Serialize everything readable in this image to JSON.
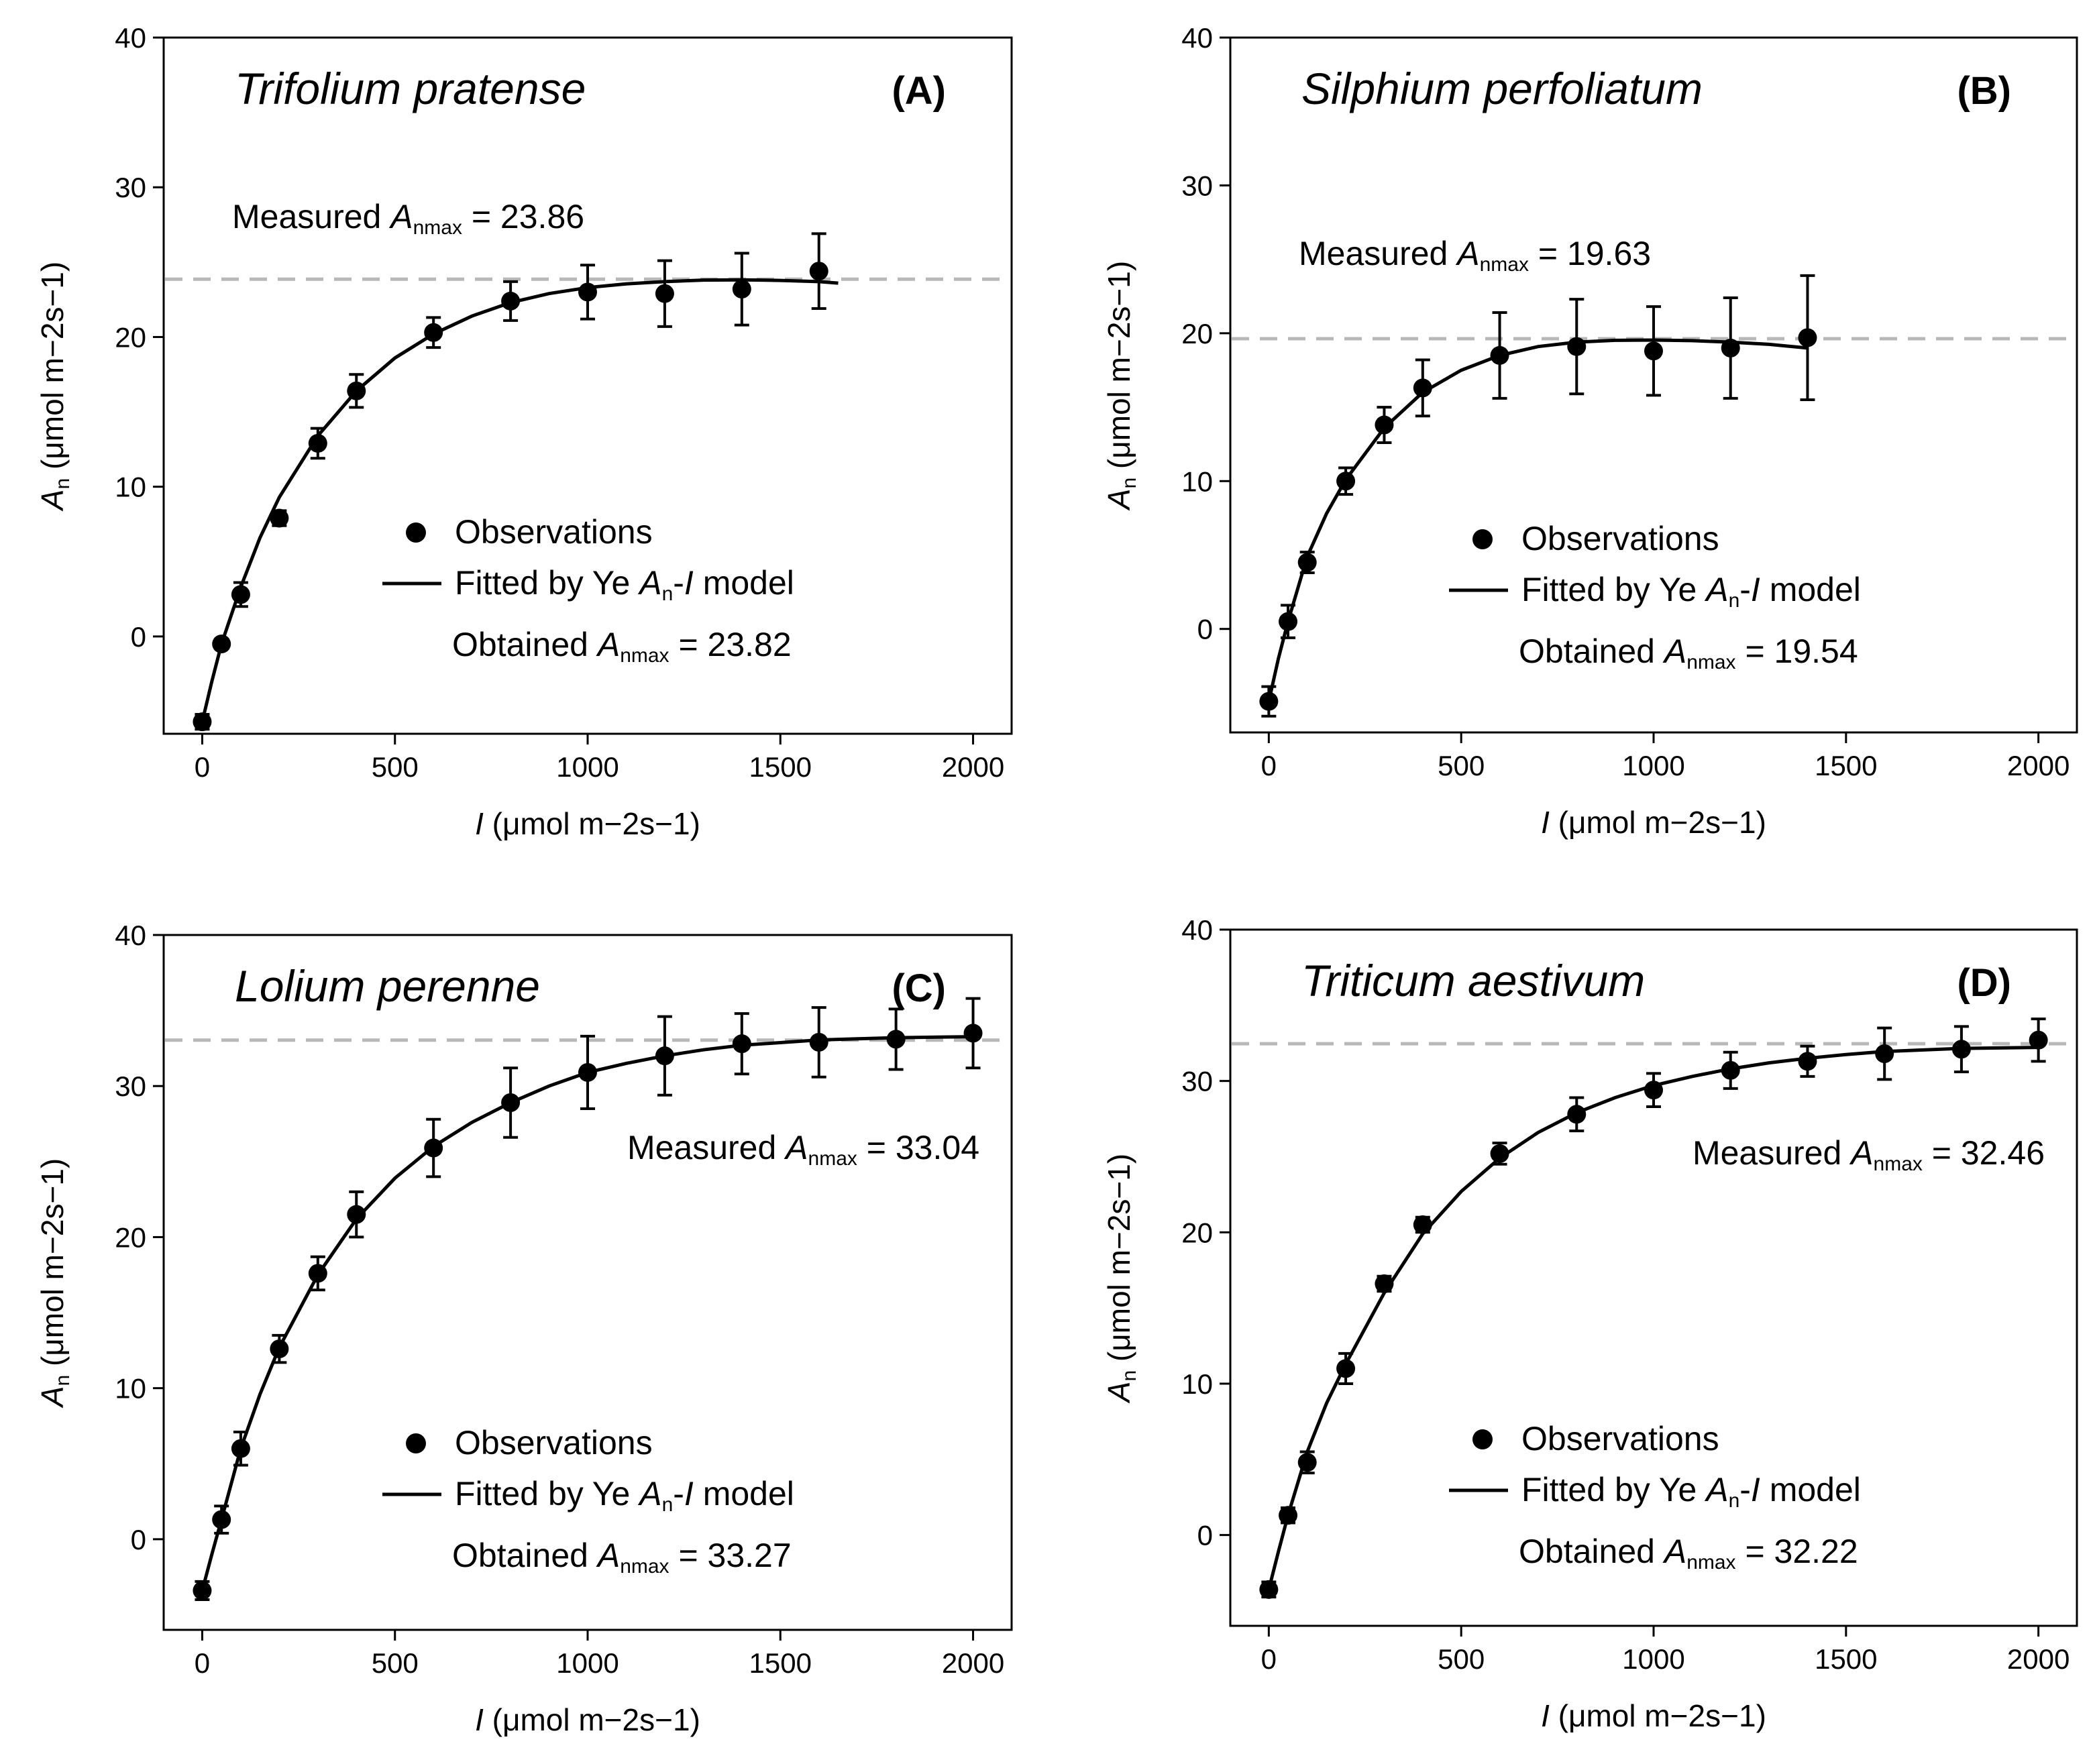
{
  "chart_data": [
    {
      "type": "scatter",
      "panel_label": "(A)",
      "species": "Trifolium pratense",
      "xlabel_var": "I",
      "xlabel_unit": "(μmol m−2s−1)",
      "ylabel_var": "A",
      "ylabel_sub": "n",
      "ylabel_unit": "(μmol m−2s−1)",
      "xlim": [
        -100,
        2100
      ],
      "ylim": [
        -6.5,
        40
      ],
      "xticks": [
        0,
        500,
        1000,
        1500,
        2000
      ],
      "yticks": [
        0,
        10,
        20,
        30,
        40
      ],
      "measured": {
        "prefix": "Measured ",
        "var": "A",
        "sub": "nmax",
        "value_text": " = 23.86",
        "value": 23.86,
        "position": "upper-left"
      },
      "obtained": {
        "prefix": "Obtained ",
        "var": "A",
        "sub": "nmax",
        "value_text": " = 23.82",
        "value": 23.82
      },
      "legend": {
        "obs": "Observations",
        "fit_prefix": "Fitted by Ye ",
        "fit_var": "A",
        "fit_sub": "n",
        "fit_mid": "-",
        "fit_var2": "I",
        "fit_suffix": " model"
      },
      "x": [
        0,
        50,
        100,
        200,
        300,
        400,
        600,
        800,
        1000,
        1200,
        1400,
        1600
      ],
      "y": [
        -5.7,
        -0.5,
        2.8,
        7.9,
        12.9,
        16.4,
        20.3,
        22.4,
        23.0,
        22.9,
        23.2,
        24.4
      ],
      "err": [
        0.5,
        0.3,
        0.8,
        0.5,
        1.0,
        1.1,
        1.0,
        1.3,
        1.8,
        2.2,
        2.4,
        2.5
      ],
      "fit": {
        "x": [
          0,
          25,
          50,
          100,
          150,
          200,
          300,
          400,
          500,
          600,
          700,
          800,
          900,
          1000,
          1100,
          1200,
          1300,
          1400,
          1500,
          1600,
          1650
        ],
        "y": [
          -5.7,
          -3.0,
          -0.5,
          3.3,
          6.6,
          9.3,
          13.4,
          16.4,
          18.6,
          20.2,
          21.4,
          22.3,
          22.9,
          23.3,
          23.55,
          23.7,
          23.8,
          23.82,
          23.78,
          23.7,
          23.6
        ]
      }
    },
    {
      "type": "scatter",
      "panel_label": "(B)",
      "species": "Silphium perfoliatum",
      "xlabel_var": "I",
      "xlabel_unit": "(μmol m−2s−1)",
      "ylabel_var": "A",
      "ylabel_sub": "n",
      "ylabel_unit": "(μmol m−2s−1)",
      "xlim": [
        -100,
        2100
      ],
      "ylim": [
        -7,
        40
      ],
      "xticks": [
        0,
        500,
        1000,
        1500,
        2000
      ],
      "yticks": [
        0,
        10,
        20,
        30,
        40
      ],
      "measured": {
        "prefix": "Measured ",
        "var": "A",
        "sub": "nmax",
        "value_text": " = 19.63",
        "value": 19.63,
        "position": "upper-left"
      },
      "obtained": {
        "prefix": "Obtained ",
        "var": "A",
        "sub": "nmax",
        "value_text": " = 19.54",
        "value": 19.54
      },
      "legend": {
        "obs": "Observations",
        "fit_prefix": "Fitted by Ye ",
        "fit_var": "A",
        "fit_sub": "n",
        "fit_mid": "-",
        "fit_var2": "I",
        "fit_suffix": " model"
      },
      "x": [
        0,
        50,
        100,
        200,
        300,
        400,
        600,
        800,
        1000,
        1200,
        1400
      ],
      "y": [
        -4.9,
        0.5,
        4.5,
        10.0,
        13.8,
        16.3,
        18.5,
        19.1,
        18.8,
        19.0,
        19.7
      ],
      "err": [
        1.0,
        1.1,
        0.7,
        0.9,
        1.2,
        1.9,
        2.9,
        3.2,
        3.0,
        3.4,
        4.2
      ],
      "fit": {
        "x": [
          0,
          25,
          50,
          100,
          150,
          200,
          300,
          400,
          500,
          600,
          700,
          800,
          900,
          1000,
          1100,
          1200,
          1300,
          1400
        ],
        "y": [
          -4.9,
          -2.0,
          0.5,
          4.9,
          7.8,
          10.1,
          13.6,
          16.0,
          17.5,
          18.5,
          19.1,
          19.4,
          19.52,
          19.54,
          19.5,
          19.4,
          19.25,
          19.0
        ]
      }
    },
    {
      "type": "scatter",
      "panel_label": "(C)",
      "species": "Lolium perenne",
      "xlabel_var": "I",
      "xlabel_unit": "(μmol m−2s−1)",
      "ylabel_var": "A",
      "ylabel_sub": "n",
      "ylabel_unit": "(μmol m−2s−1)",
      "xlim": [
        -100,
        2100
      ],
      "ylim": [
        -6,
        40
      ],
      "xticks": [
        0,
        500,
        1000,
        1500,
        2000
      ],
      "yticks": [
        0,
        10,
        20,
        30,
        40
      ],
      "measured": {
        "prefix": "Measured ",
        "var": "A",
        "sub": "nmax",
        "value_text": " = 33.04",
        "value": 33.04,
        "position": "right"
      },
      "obtained": {
        "prefix": "Obtained ",
        "var": "A",
        "sub": "nmax",
        "value_text": " = 33.27",
        "value": 33.27
      },
      "legend": {
        "obs": "Observations",
        "fit_prefix": "Fitted by Ye ",
        "fit_var": "A",
        "fit_sub": "n",
        "fit_mid": "-",
        "fit_var2": "I",
        "fit_suffix": " model"
      },
      "x": [
        0,
        50,
        100,
        200,
        300,
        400,
        600,
        800,
        1000,
        1200,
        1400,
        1600,
        1800,
        2000
      ],
      "y": [
        -3.4,
        1.3,
        6.0,
        12.6,
        17.6,
        21.5,
        25.9,
        28.9,
        30.9,
        32.0,
        32.8,
        32.9,
        33.1,
        33.5
      ],
      "err": [
        0.6,
        0.9,
        1.1,
        0.9,
        1.1,
        1.5,
        1.9,
        2.3,
        2.4,
        2.6,
        2.0,
        2.3,
        2.0,
        2.3
      ],
      "fit": {
        "x": [
          0,
          25,
          50,
          100,
          150,
          200,
          300,
          400,
          500,
          600,
          700,
          800,
          900,
          1000,
          1100,
          1200,
          1300,
          1400,
          1600,
          1800,
          2000
        ],
        "y": [
          -3.4,
          -1.0,
          1.3,
          6.0,
          9.6,
          12.7,
          17.5,
          21.2,
          23.9,
          26.0,
          27.6,
          28.9,
          30.0,
          30.9,
          31.5,
          32.0,
          32.4,
          32.7,
          33.05,
          33.2,
          33.27
        ]
      }
    },
    {
      "type": "scatter",
      "panel_label": "(D)",
      "species": "Triticum aestivum",
      "xlabel_var": "I",
      "xlabel_unit": "(μmol m−2s−1)",
      "ylabel_var": "A",
      "ylabel_sub": "n",
      "ylabel_unit": "(μmol m−2s−1)",
      "xlim": [
        -100,
        2100
      ],
      "ylim": [
        -6,
        40
      ],
      "xticks": [
        0,
        500,
        1000,
        1500,
        2000
      ],
      "yticks": [
        0,
        10,
        20,
        30,
        40
      ],
      "measured": {
        "prefix": "Measured ",
        "var": "A",
        "sub": "nmax",
        "value_text": " = 32.46",
        "value": 32.46,
        "position": "right"
      },
      "obtained": {
        "prefix": "Obtained ",
        "var": "A",
        "sub": "nmax",
        "value_text": " = 32.22",
        "value": 32.22
      },
      "legend": {
        "obs": "Observations",
        "fit_prefix": "Fitted by Ye ",
        "fit_var": "A",
        "fit_sub": "n",
        "fit_mid": "-",
        "fit_var2": "I",
        "fit_suffix": " model"
      },
      "x": [
        0,
        50,
        100,
        200,
        300,
        400,
        600,
        800,
        1000,
        1200,
        1400,
        1600,
        1800,
        2000
      ],
      "y": [
        -3.6,
        1.3,
        4.8,
        11.0,
        16.6,
        20.5,
        25.2,
        27.8,
        29.4,
        30.7,
        31.3,
        31.8,
        32.1,
        32.7
      ],
      "err": [
        0.5,
        0.5,
        0.7,
        1.0,
        0.5,
        0.5,
        0.7,
        1.1,
        1.1,
        1.2,
        1.0,
        1.7,
        1.5,
        1.4
      ],
      "fit": {
        "x": [
          0,
          25,
          50,
          100,
          150,
          200,
          300,
          400,
          500,
          600,
          700,
          800,
          900,
          1000,
          1100,
          1200,
          1300,
          1400,
          1500,
          1600,
          1800,
          2000
        ],
        "y": [
          -3.6,
          -1.1,
          1.3,
          5.5,
          8.7,
          11.3,
          16.0,
          19.9,
          22.7,
          24.9,
          26.6,
          27.9,
          28.9,
          29.7,
          30.3,
          30.8,
          31.2,
          31.5,
          31.75,
          31.95,
          32.15,
          32.22
        ]
      }
    }
  ]
}
